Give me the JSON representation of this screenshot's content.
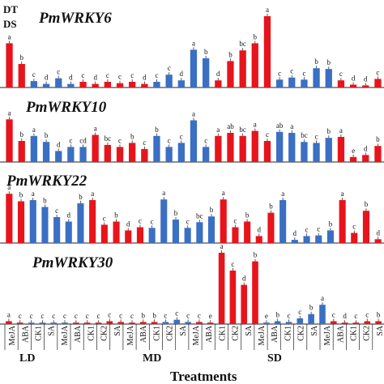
{
  "chart_data": {
    "type": "bar",
    "legend": [
      "DT",
      "DS"
    ],
    "xlabel": "Treatments",
    "categories": [
      "MeJA",
      "ABA",
      "CK1",
      "SA",
      "MeJA",
      "ABA",
      "CK1",
      "CK2",
      "SA",
      "MeJA",
      "ABA",
      "CK1",
      "CK2",
      "SA",
      "MeJA",
      "ABA",
      "CK1",
      "CK2",
      "SA",
      "MeJA",
      "ABA",
      "CK1",
      "CK2",
      "SA",
      "MeJA",
      "ABA",
      "CK1",
      "CK2",
      "SA"
    ],
    "group_labels": [
      "LD",
      "MD",
      "SD"
    ],
    "colors": {
      "red": "#e8141c",
      "blue": "#3a6fc4"
    },
    "panels": [
      {
        "title": "PmWRKY6",
        "bars": [
          {
            "v": 0.62,
            "c": "r",
            "l": "a"
          },
          {
            "v": 0.33,
            "c": "r",
            "l": "b"
          },
          {
            "v": 0.09,
            "c": "b",
            "l": "c"
          },
          {
            "v": 0.05,
            "c": "b",
            "l": "d"
          },
          {
            "v": 0.13,
            "c": "b",
            "l": "c"
          },
          {
            "v": 0.05,
            "c": "b",
            "l": "d"
          },
          {
            "v": 0.08,
            "c": "r",
            "l": "c"
          },
          {
            "v": 0.05,
            "c": "r",
            "l": "d"
          },
          {
            "v": 0.08,
            "c": "r",
            "l": "c"
          },
          {
            "v": 0.06,
            "c": "r",
            "l": "c"
          },
          {
            "v": 0.08,
            "c": "r",
            "l": "c"
          },
          {
            "v": 0.05,
            "c": "r",
            "l": "d"
          },
          {
            "v": 0.08,
            "c": "b",
            "l": "c"
          },
          {
            "v": 0.18,
            "c": "b",
            "l": "c"
          },
          {
            "v": 0.1,
            "c": "b",
            "l": "d"
          },
          {
            "v": 0.53,
            "c": "b",
            "l": "a"
          },
          {
            "v": 0.41,
            "c": "b",
            "l": "b"
          },
          {
            "v": 0.1,
            "c": "r",
            "l": "d"
          },
          {
            "v": 0.37,
            "c": "r",
            "l": "b"
          },
          {
            "v": 0.52,
            "c": "r",
            "l": "bc"
          },
          {
            "v": 0.62,
            "c": "r",
            "l": "b"
          },
          {
            "v": 1.0,
            "c": "r",
            "l": "a"
          },
          {
            "v": 0.11,
            "c": "b",
            "l": "c"
          },
          {
            "v": 0.14,
            "c": "b",
            "l": "c"
          },
          {
            "v": 0.11,
            "c": "b",
            "l": "c"
          },
          {
            "v": 0.27,
            "c": "b",
            "l": "b"
          },
          {
            "v": 0.26,
            "c": "b",
            "l": "b"
          },
          {
            "v": 0.1,
            "c": "r",
            "l": "c"
          },
          {
            "v": 0.04,
            "c": "r",
            "l": "d"
          },
          {
            "v": 0.03,
            "c": "r",
            "l": "d"
          },
          {
            "v": 0.12,
            "c": "r",
            "l": "c"
          }
        ]
      },
      {
        "title": "PmWRKY10",
        "bars": [
          {
            "v": 0.85,
            "c": "r",
            "l": "a"
          },
          {
            "v": 0.42,
            "c": "r",
            "l": "b"
          },
          {
            "v": 0.52,
            "c": "b",
            "l": "a"
          },
          {
            "v": 0.4,
            "c": "b",
            "l": "b"
          },
          {
            "v": 0.22,
            "c": "b",
            "l": "d"
          },
          {
            "v": 0.3,
            "c": "b",
            "l": "c"
          },
          {
            "v": 0.3,
            "c": "b",
            "l": "cd"
          },
          {
            "v": 0.54,
            "c": "r",
            "l": "a"
          },
          {
            "v": 0.34,
            "c": "r",
            "l": "bc"
          },
          {
            "v": 0.3,
            "c": "r",
            "l": "c"
          },
          {
            "v": 0.38,
            "c": "r",
            "l": "b"
          },
          {
            "v": 0.26,
            "c": "r",
            "l": "c"
          },
          {
            "v": 0.52,
            "c": "b",
            "l": "b"
          },
          {
            "v": 0.3,
            "c": "b",
            "l": "c"
          },
          {
            "v": 0.38,
            "c": "b",
            "l": "c"
          },
          {
            "v": 0.83,
            "c": "b",
            "l": "a"
          },
          {
            "v": 0.3,
            "c": "b",
            "l": "c"
          },
          {
            "v": 0.52,
            "c": "r",
            "l": "a"
          },
          {
            "v": 0.58,
            "c": "r",
            "l": "ab"
          },
          {
            "v": 0.52,
            "c": "r",
            "l": "bc"
          },
          {
            "v": 0.62,
            "c": "r",
            "l": "a"
          },
          {
            "v": 0.42,
            "c": "r",
            "l": "c"
          },
          {
            "v": 0.6,
            "c": "b",
            "l": "ab"
          },
          {
            "v": 0.58,
            "c": "b",
            "l": "a"
          },
          {
            "v": 0.4,
            "c": "b",
            "l": "bc"
          },
          {
            "v": 0.38,
            "c": "b",
            "l": "c"
          },
          {
            "v": 0.48,
            "c": "b",
            "l": "b"
          },
          {
            "v": 0.5,
            "c": "r",
            "l": "a"
          },
          {
            "v": 0.1,
            "c": "r",
            "l": "e"
          },
          {
            "v": 0.14,
            "c": "r",
            "l": "d"
          },
          {
            "v": 0.32,
            "c": "r",
            "l": "b"
          }
        ]
      },
      {
        "title": "PmWRKY22",
        "bars": [
          {
            "v": 0.78,
            "c": "r",
            "l": "a"
          },
          {
            "v": 0.66,
            "c": "r",
            "l": "b"
          },
          {
            "v": 0.68,
            "c": "b",
            "l": "a"
          },
          {
            "v": 0.57,
            "c": "b",
            "l": "b"
          },
          {
            "v": 0.41,
            "c": "b",
            "l": "c"
          },
          {
            "v": 0.34,
            "c": "b",
            "l": "d"
          },
          {
            "v": 0.63,
            "c": "b",
            "l": "b"
          },
          {
            "v": 0.68,
            "c": "r",
            "l": "a"
          },
          {
            "v": 0.29,
            "c": "r",
            "l": "c"
          },
          {
            "v": 0.34,
            "c": "r",
            "l": "b"
          },
          {
            "v": 0.2,
            "c": "r",
            "l": "d"
          },
          {
            "v": 0.25,
            "c": "r",
            "l": "c"
          },
          {
            "v": 0.24,
            "c": "b",
            "l": "c"
          },
          {
            "v": 0.69,
            "c": "b",
            "l": "a"
          },
          {
            "v": 0.37,
            "c": "b",
            "l": "b"
          },
          {
            "v": 0.24,
            "c": "b",
            "l": "c"
          },
          {
            "v": 0.33,
            "c": "b",
            "l": "bc"
          },
          {
            "v": 0.42,
            "c": "b",
            "l": "b"
          },
          {
            "v": 0.69,
            "c": "r",
            "l": "a"
          },
          {
            "v": 0.25,
            "c": "r",
            "l": "c"
          },
          {
            "v": 0.34,
            "c": "r",
            "l": "b"
          },
          {
            "v": 0.11,
            "c": "r",
            "l": "d"
          },
          {
            "v": 0.48,
            "c": "r",
            "l": "b"
          },
          {
            "v": 0.68,
            "c": "b",
            "l": "a"
          },
          {
            "v": 0.05,
            "c": "b",
            "l": "d"
          },
          {
            "v": 0.11,
            "c": "b",
            "l": "c"
          },
          {
            "v": 0.12,
            "c": "b",
            "l": "c"
          },
          {
            "v": 0.2,
            "c": "b",
            "l": "b"
          },
          {
            "v": 0.68,
            "c": "r",
            "l": "a"
          },
          {
            "v": 0.16,
            "c": "r",
            "l": "c"
          },
          {
            "v": 0.51,
            "c": "r",
            "l": "b"
          },
          {
            "v": 0.06,
            "c": "r",
            "l": "d"
          }
        ]
      },
      {
        "title": "PmWRKY30",
        "bars": [
          {
            "v": 0.04,
            "c": "r",
            "l": "a"
          },
          {
            "v": 0.02,
            "c": "r",
            "l": "c"
          },
          {
            "v": 0.02,
            "c": "b",
            "l": "c"
          },
          {
            "v": 0.02,
            "c": "b",
            "l": "c"
          },
          {
            "v": 0.02,
            "c": "b",
            "l": "c"
          },
          {
            "v": 0.02,
            "c": "b",
            "l": "c"
          },
          {
            "v": 0.02,
            "c": "r",
            "l": "c"
          },
          {
            "v": 0.02,
            "c": "r",
            "l": "c"
          },
          {
            "v": 0.02,
            "c": "r",
            "l": "c"
          },
          {
            "v": 0.04,
            "c": "r",
            "l": "c"
          },
          {
            "v": 0.03,
            "c": "r",
            "l": "c"
          },
          {
            "v": 0.02,
            "c": "r",
            "l": "c"
          },
          {
            "v": 0.03,
            "c": "r",
            "l": "b"
          },
          {
            "v": 0.03,
            "c": "r",
            "l": "b"
          },
          {
            "v": 0.03,
            "c": "b",
            "l": "c"
          },
          {
            "v": 0.06,
            "c": "b",
            "l": "c"
          },
          {
            "v": 0.03,
            "c": "b",
            "l": "c"
          },
          {
            "v": 0.03,
            "c": "r",
            "l": "c"
          },
          {
            "v": 0.02,
            "c": "r",
            "l": "e"
          },
          {
            "v": 1.0,
            "c": "r",
            "l": "a"
          },
          {
            "v": 0.75,
            "c": "r",
            "l": "c"
          },
          {
            "v": 0.55,
            "c": "r",
            "l": "d"
          },
          {
            "v": 0.88,
            "c": "r",
            "l": "b"
          },
          {
            "v": 0.02,
            "c": "b",
            "l": "e"
          },
          {
            "v": 0.04,
            "c": "b",
            "l": "b"
          },
          {
            "v": 0.03,
            "c": "b",
            "l": "c"
          },
          {
            "v": 0.08,
            "c": "b",
            "l": "c"
          },
          {
            "v": 0.14,
            "c": "b",
            "l": "b"
          },
          {
            "v": 0.27,
            "c": "b",
            "l": "a"
          },
          {
            "v": 0.04,
            "c": "r",
            "l": "c"
          },
          {
            "v": 0.02,
            "c": "r",
            "l": "d"
          },
          {
            "v": 0.02,
            "c": "r",
            "l": "c"
          },
          {
            "v": 0.04,
            "c": "r",
            "l": "c"
          },
          {
            "v": 0.04,
            "c": "r",
            "l": "b"
          }
        ]
      }
    ]
  }
}
